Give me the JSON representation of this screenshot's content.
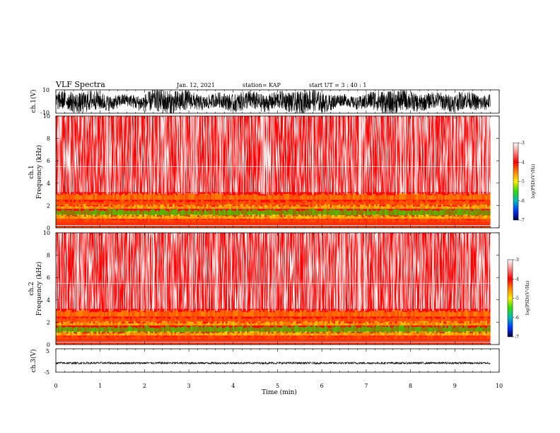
{
  "header": {
    "title": "VLF Spectra",
    "date": "Jan. 12, 2021",
    "station": "station= KAP",
    "start_ut": "start UT =  3 : 40 : 1"
  },
  "chart_data": [
    {
      "type": "line",
      "name": "ch1-waveform",
      "ylabel": "ch.1(V)",
      "ylim": [
        -10,
        10
      ],
      "yticks": [
        "10",
        "-10"
      ],
      "xlim": [
        0,
        10
      ]
    },
    {
      "type": "heatmap",
      "name": "ch1-spectrogram",
      "ylabel_line1": "ch.1",
      "ylabel_line2": "Frequency (kHz)",
      "ylim": [
        0,
        10
      ],
      "yticks": [
        "0",
        "2",
        "4",
        "6",
        "8",
        "10"
      ],
      "xlim": [
        0,
        9.8
      ],
      "colorbar": {
        "label": "log(PSD)(V²/Hz)",
        "range": [
          -7,
          -3
        ],
        "ticks": [
          "-3",
          "-4",
          "-5",
          "-6",
          "-7"
        ]
      }
    },
    {
      "type": "heatmap",
      "name": "ch2-spectrogram",
      "ylabel_line1": "ch.2",
      "ylabel_line2": "Frequency (kHz)",
      "ylim": [
        0,
        10
      ],
      "yticks": [
        "0",
        "2",
        "4",
        "6",
        "8",
        "10"
      ],
      "xlim": [
        0,
        9.8
      ],
      "colorbar": {
        "label": "log(PSD)(V²/Hz)",
        "range": [
          -7,
          -3
        ],
        "ticks": [
          "-3",
          "-4",
          "-5",
          "-6",
          "-7"
        ]
      }
    },
    {
      "type": "line",
      "name": "ch3-waveform",
      "ylabel": "ch.3(V)",
      "ylim": [
        -5,
        5
      ],
      "yticks": [
        "5",
        "0",
        "-5"
      ],
      "xlim": [
        0,
        10
      ],
      "xlabel": "Time (min)",
      "xticks": [
        "0",
        "1",
        "2",
        "3",
        "4",
        "5",
        "6",
        "7",
        "8",
        "9",
        "10"
      ]
    }
  ],
  "colors": {
    "spectrum_background": "#ff0000",
    "spectrum_noise": "#ffffff",
    "band_yellow": "#ffee00",
    "band_green": "#33dd00",
    "band_orange": "#ff8800",
    "waveform": "#000000"
  }
}
